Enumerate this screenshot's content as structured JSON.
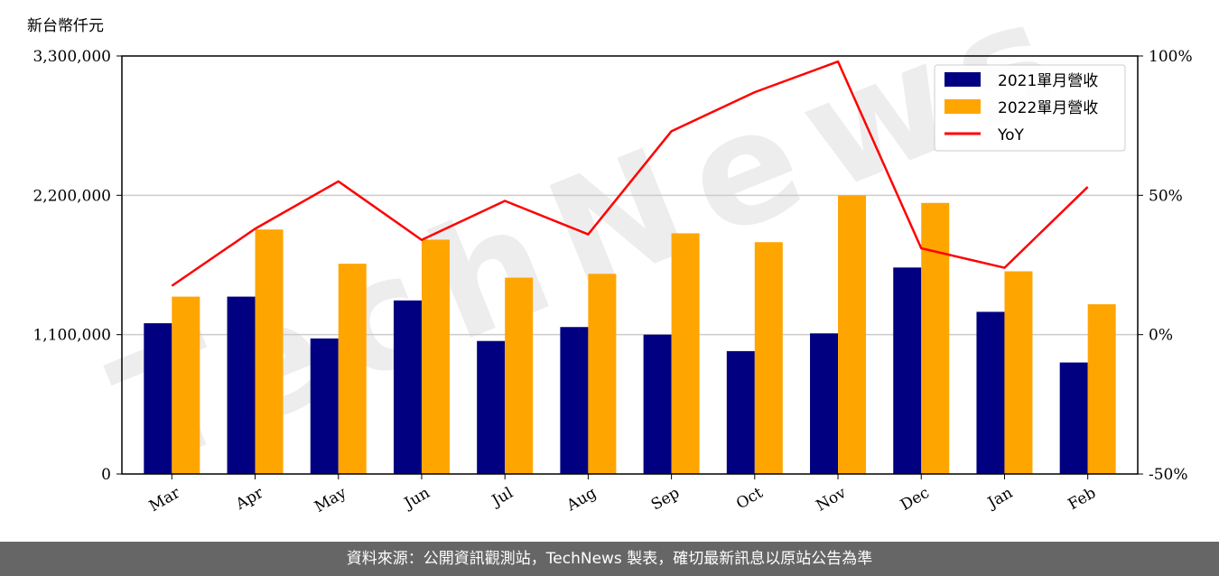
{
  "unit_label": "新台幣仟元",
  "footer_text": "資料來源：公開資訊觀測站，TechNews 製表，確切最新訊息以原站公告為準",
  "watermark_text": "TechNews",
  "colors": {
    "series_2021": "#000080",
    "series_2022": "#ffa500",
    "yoy": "#ff0000",
    "grid": "#cccccc",
    "footer_bg": "#666666"
  },
  "chart_data": {
    "type": "bar",
    "categories": [
      "Mar",
      "Apr",
      "May",
      "Jun",
      "Jul",
      "Aug",
      "Sep",
      "Oct",
      "Nov",
      "Dec",
      "Jan",
      "Feb"
    ],
    "series": [
      {
        "name": "2021單月營收",
        "values": [
          1190000,
          1400000,
          1070000,
          1370000,
          1050000,
          1160000,
          1100000,
          970000,
          1110000,
          1630000,
          1280000,
          880000
        ]
      },
      {
        "name": "2022單月營收",
        "values": [
          1400000,
          1930000,
          1660000,
          1850000,
          1550000,
          1580000,
          1900000,
          1830000,
          2200000,
          2140000,
          1600000,
          1340000
        ]
      }
    ],
    "line_series": {
      "name": "YoY",
      "axis": "right",
      "values": [
        17.5,
        38,
        55,
        34,
        48,
        36,
        73,
        87,
        98,
        31,
        24,
        53
      ]
    },
    "ylim": [
      0,
      3300000
    ],
    "yticks": [
      0,
      1100000,
      2200000,
      3300000
    ],
    "ytick_labels": [
      "0",
      "1,100,000",
      "2,200,000",
      "3,300,000"
    ],
    "y2lim": [
      -50,
      100
    ],
    "y2ticks": [
      -50,
      0,
      50,
      100
    ],
    "y2tick_labels": [
      "-50%",
      "0%",
      "50%",
      "100%"
    ],
    "grid": "horizontal",
    "legend_position": "top-right"
  }
}
